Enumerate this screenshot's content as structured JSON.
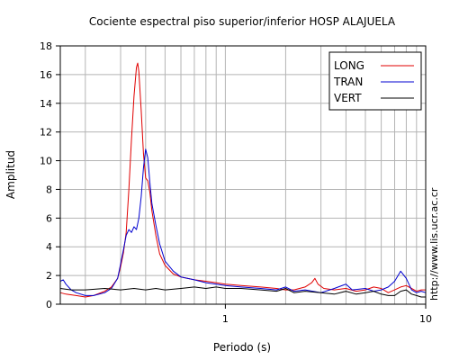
{
  "chart_data": {
    "type": "line",
    "title": "Cociente espectral piso superior/inferior  HOSP ALAJUELA",
    "xlabel": "Periodo (s)",
    "ylabel": "Amplitud",
    "x_scale": "log",
    "xlim": [
      0.15,
      10
    ],
    "ylim": [
      0,
      18
    ],
    "y_ticks": [
      0,
      2,
      4,
      6,
      8,
      10,
      12,
      14,
      16,
      18
    ],
    "x_tick_labels": [
      {
        "value": 1,
        "label": "1"
      },
      {
        "value": 10,
        "label": "10"
      }
    ],
    "x_minor_ticks": [
      0.2,
      0.3,
      0.4,
      0.5,
      0.6,
      0.7,
      0.8,
      0.9,
      2,
      3,
      4,
      5,
      6,
      7,
      8,
      9
    ],
    "grid": true,
    "legend_position": "top-right",
    "side_text": "http://www.lis.ucr.ac.cr",
    "series": [
      {
        "name": "LONG",
        "color": "#e00000",
        "points": [
          [
            0.15,
            0.8
          ],
          [
            0.16,
            0.7
          ],
          [
            0.18,
            0.6
          ],
          [
            0.2,
            0.5
          ],
          [
            0.22,
            0.6
          ],
          [
            0.25,
            0.9
          ],
          [
            0.27,
            1.2
          ],
          [
            0.29,
            1.8
          ],
          [
            0.3,
            2.6
          ],
          [
            0.31,
            3.6
          ],
          [
            0.32,
            5.0
          ],
          [
            0.33,
            8.0
          ],
          [
            0.34,
            11.5
          ],
          [
            0.35,
            14.5
          ],
          [
            0.36,
            16.5
          ],
          [
            0.365,
            16.8
          ],
          [
            0.37,
            16.2
          ],
          [
            0.38,
            13.5
          ],
          [
            0.39,
            10.5
          ],
          [
            0.4,
            8.8
          ],
          [
            0.41,
            8.6
          ],
          [
            0.42,
            7.8
          ],
          [
            0.43,
            6.5
          ],
          [
            0.45,
            4.8
          ],
          [
            0.47,
            3.5
          ],
          [
            0.5,
            2.7
          ],
          [
            0.55,
            2.1
          ],
          [
            0.6,
            1.9
          ],
          [
            0.7,
            1.7
          ],
          [
            0.8,
            1.6
          ],
          [
            0.9,
            1.5
          ],
          [
            1,
            1.4
          ],
          [
            1.2,
            1.3
          ],
          [
            1.5,
            1.2
          ],
          [
            1.8,
            1.1
          ],
          [
            2,
            1.0
          ],
          [
            2.2,
            1.0
          ],
          [
            2.5,
            1.2
          ],
          [
            2.7,
            1.5
          ],
          [
            2.8,
            1.8
          ],
          [
            2.9,
            1.4
          ],
          [
            3.1,
            1.1
          ],
          [
            3.5,
            1.0
          ],
          [
            4,
            1.1
          ],
          [
            4.5,
            0.9
          ],
          [
            5,
            1.0
          ],
          [
            5.5,
            1.2
          ],
          [
            6,
            1.1
          ],
          [
            6.5,
            0.8
          ],
          [
            7,
            1.0
          ],
          [
            7.5,
            1.2
          ],
          [
            8,
            1.3
          ],
          [
            8.5,
            1.1
          ],
          [
            9,
            0.9
          ],
          [
            9.5,
            1.0
          ],
          [
            10,
            1.0
          ]
        ]
      },
      {
        "name": "TRAN",
        "color": "#0000d0",
        "points": [
          [
            0.15,
            1.6
          ],
          [
            0.155,
            1.7
          ],
          [
            0.16,
            1.4
          ],
          [
            0.17,
            1.0
          ],
          [
            0.18,
            0.8
          ],
          [
            0.2,
            0.6
          ],
          [
            0.22,
            0.6
          ],
          [
            0.25,
            0.8
          ],
          [
            0.27,
            1.1
          ],
          [
            0.29,
            1.8
          ],
          [
            0.3,
            2.8
          ],
          [
            0.31,
            3.8
          ],
          [
            0.32,
            4.8
          ],
          [
            0.33,
            5.2
          ],
          [
            0.34,
            5.0
          ],
          [
            0.35,
            5.4
          ],
          [
            0.36,
            5.2
          ],
          [
            0.37,
            6.0
          ],
          [
            0.38,
            7.5
          ],
          [
            0.39,
            9.5
          ],
          [
            0.4,
            10.8
          ],
          [
            0.41,
            10.2
          ],
          [
            0.42,
            8.5
          ],
          [
            0.43,
            7.0
          ],
          [
            0.45,
            5.5
          ],
          [
            0.47,
            4.2
          ],
          [
            0.5,
            3.0
          ],
          [
            0.55,
            2.3
          ],
          [
            0.6,
            1.9
          ],
          [
            0.7,
            1.7
          ],
          [
            0.8,
            1.5
          ],
          [
            0.9,
            1.4
          ],
          [
            1,
            1.3
          ],
          [
            1.2,
            1.2
          ],
          [
            1.5,
            1.1
          ],
          [
            1.8,
            1.0
          ],
          [
            2,
            1.2
          ],
          [
            2.2,
            0.9
          ],
          [
            2.5,
            1.0
          ],
          [
            3,
            0.8
          ],
          [
            3.5,
            1.1
          ],
          [
            4,
            1.4
          ],
          [
            4.3,
            1.0
          ],
          [
            5,
            1.1
          ],
          [
            5.5,
            0.9
          ],
          [
            6,
            1.0
          ],
          [
            6.5,
            1.2
          ],
          [
            7,
            1.6
          ],
          [
            7.5,
            2.3
          ],
          [
            8,
            1.8
          ],
          [
            8.5,
            1.0
          ],
          [
            9,
            0.8
          ],
          [
            9.5,
            0.9
          ],
          [
            10,
            0.8
          ]
        ]
      },
      {
        "name": "VERT",
        "color": "#000000",
        "points": [
          [
            0.15,
            1.1
          ],
          [
            0.17,
            1.0
          ],
          [
            0.2,
            1.0
          ],
          [
            0.25,
            1.1
          ],
          [
            0.3,
            1.0
          ],
          [
            0.35,
            1.1
          ],
          [
            0.4,
            1.0
          ],
          [
            0.45,
            1.1
          ],
          [
            0.5,
            1.0
          ],
          [
            0.6,
            1.1
          ],
          [
            0.7,
            1.2
          ],
          [
            0.8,
            1.1
          ],
          [
            0.9,
            1.2
          ],
          [
            1,
            1.1
          ],
          [
            1.2,
            1.1
          ],
          [
            1.5,
            1.0
          ],
          [
            1.8,
            0.9
          ],
          [
            2,
            1.1
          ],
          [
            2.2,
            0.8
          ],
          [
            2.5,
            0.9
          ],
          [
            3,
            0.8
          ],
          [
            3.5,
            0.7
          ],
          [
            4,
            0.9
          ],
          [
            4.5,
            0.7
          ],
          [
            5,
            0.8
          ],
          [
            5.5,
            0.9
          ],
          [
            6,
            0.7
          ],
          [
            6.5,
            0.6
          ],
          [
            7,
            0.6
          ],
          [
            7.5,
            0.9
          ],
          [
            8,
            1.0
          ],
          [
            8.5,
            0.7
          ],
          [
            9,
            0.6
          ],
          [
            9.5,
            0.5
          ],
          [
            10,
            0.5
          ]
        ]
      }
    ]
  }
}
